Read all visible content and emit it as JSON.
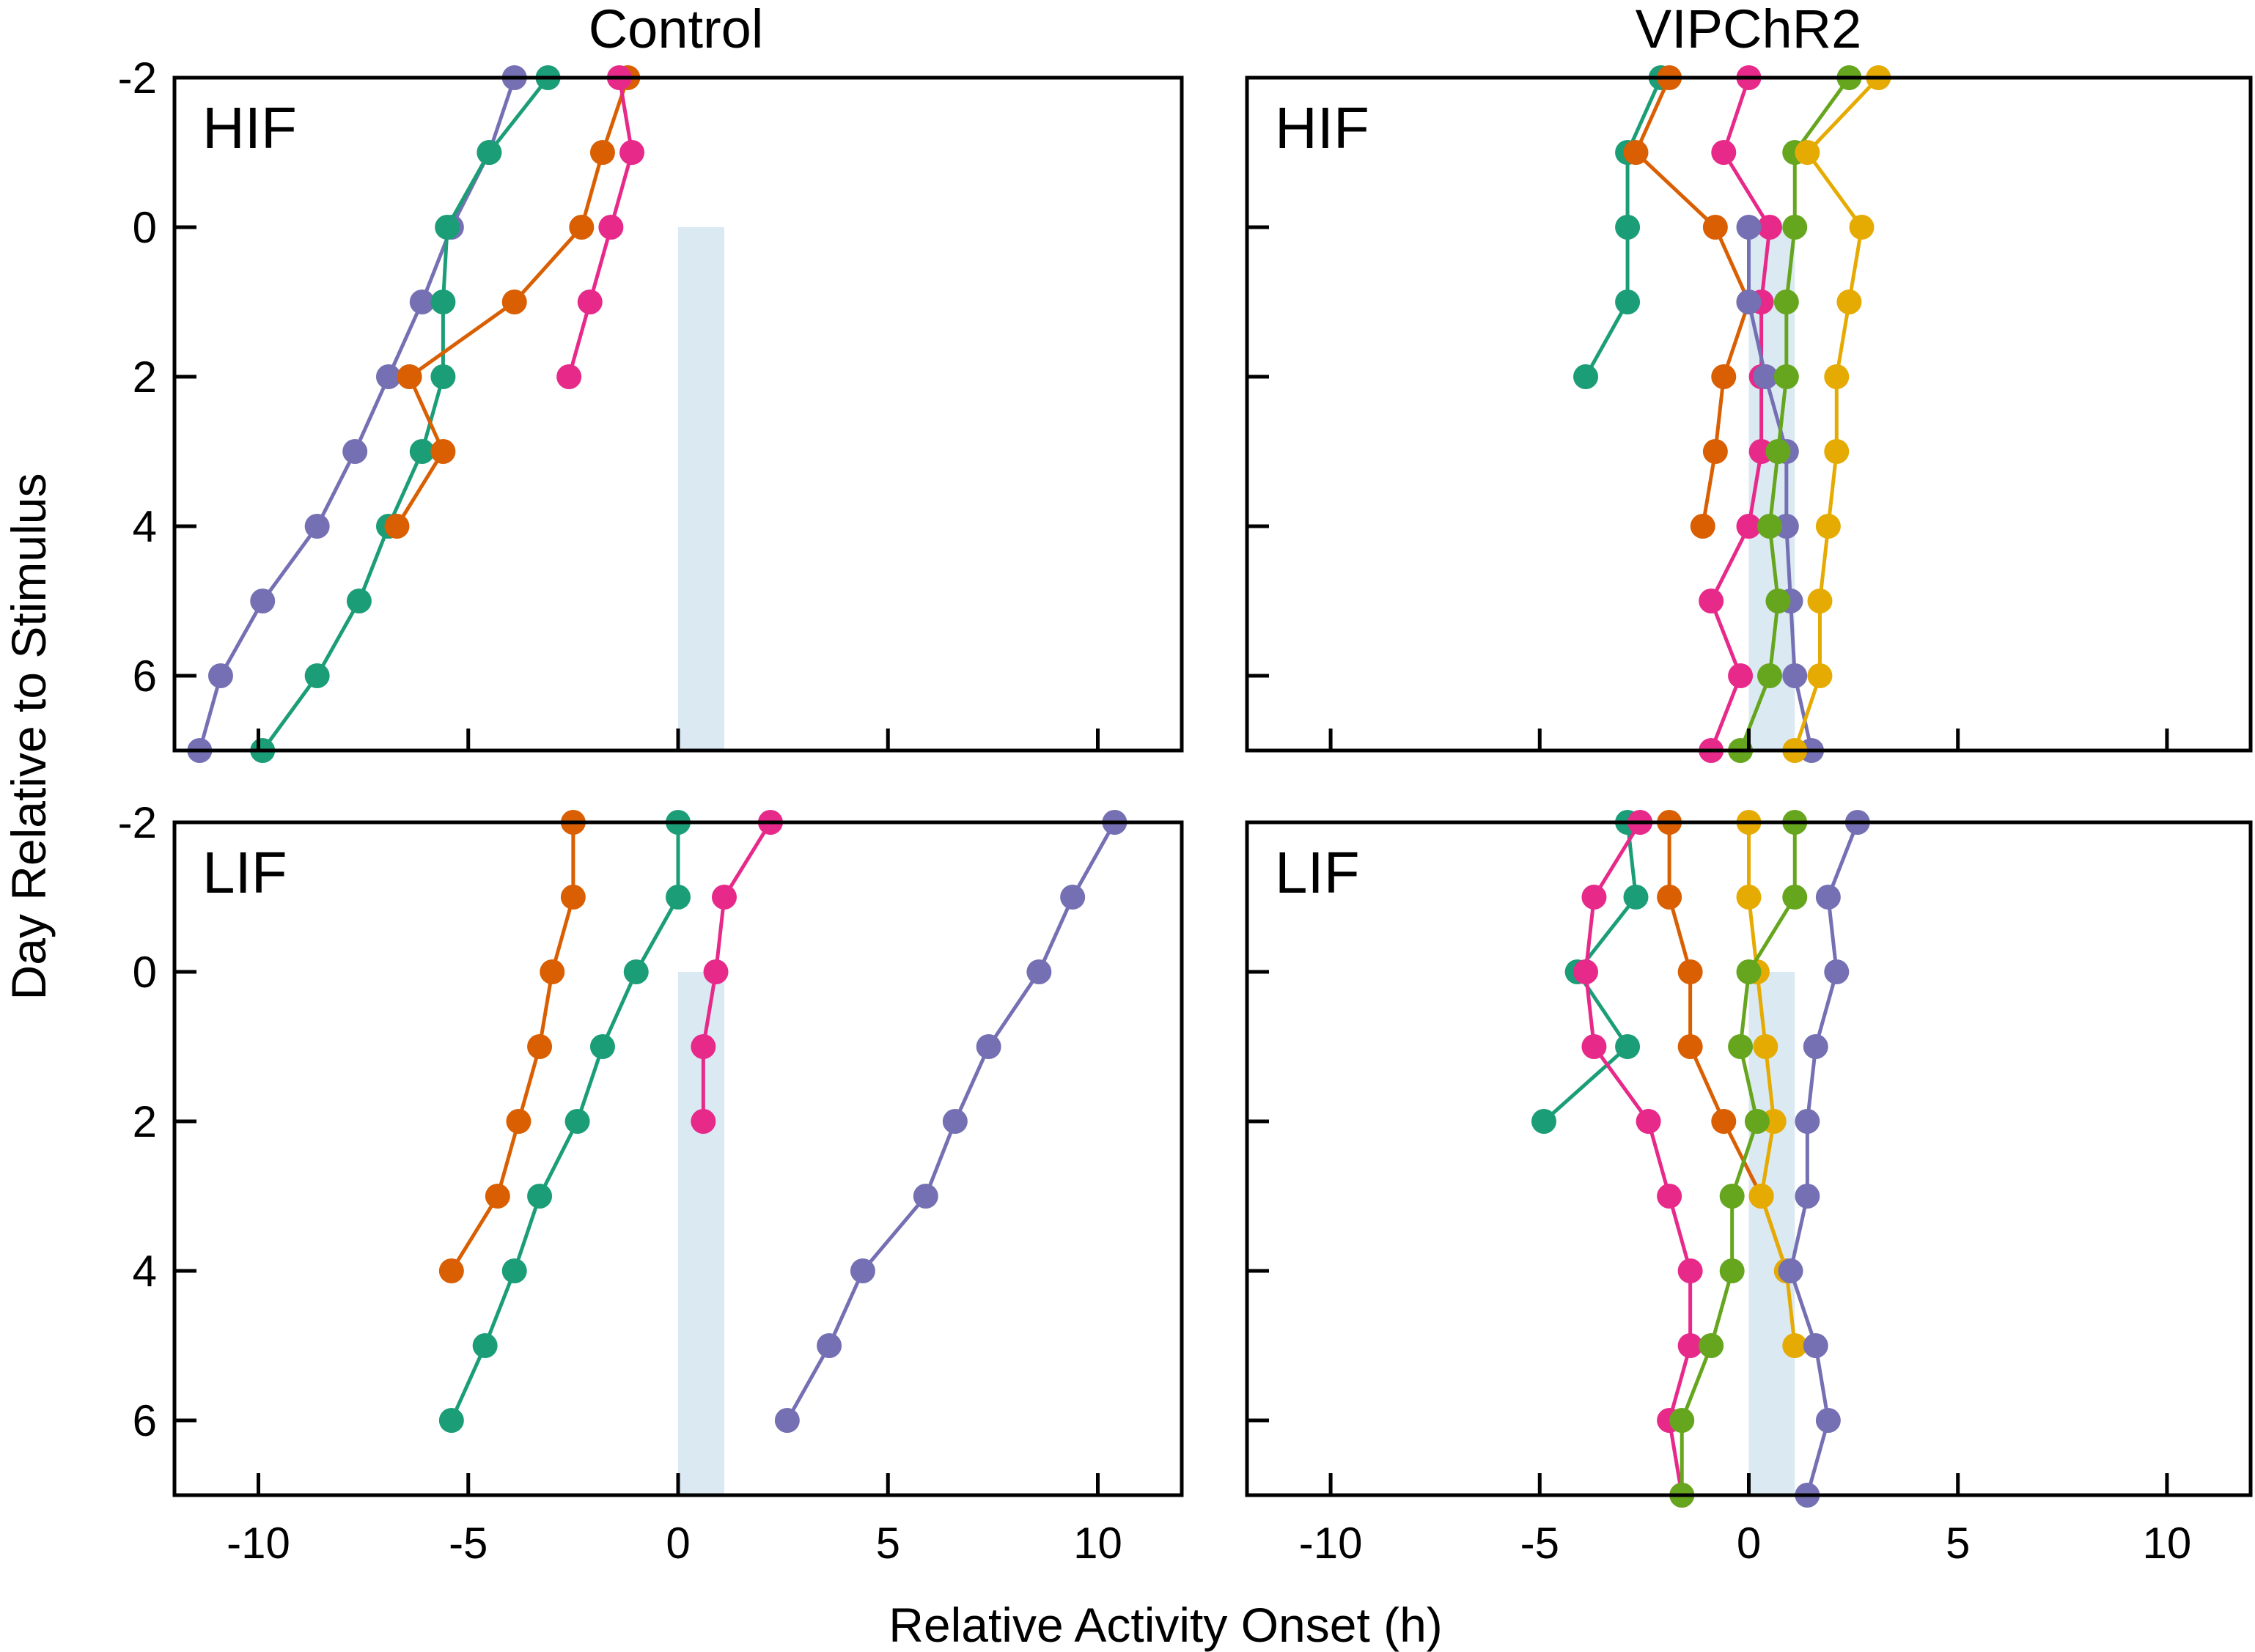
{
  "columns": [
    "Control",
    "VIPChR2"
  ],
  "xlabel": "Relative Activity Onset (h)",
  "ylabel": "Day Relative to Stimulus",
  "xticks": [
    -10,
    -5,
    0,
    5,
    10
  ],
  "xtick_labels": [
    "-10",
    "-5",
    "0",
    "5",
    "10"
  ],
  "yticks": [
    -2,
    0,
    2,
    4,
    6
  ],
  "ytick_labels": [
    "-2",
    "0",
    "2",
    "4",
    "6"
  ],
  "colors": {
    "green": "#1b9e77",
    "orange": "#d95f02",
    "purple": "#7570b3",
    "pink": "#e7298a",
    "lime": "#66a61e",
    "gold": "#e6ab02",
    "stimulus_band": "#dbe9f3"
  },
  "chart_data": [
    {
      "type": "line",
      "column": "Control",
      "label": "HIF",
      "xlim": [
        -12,
        12
      ],
      "ylim": [
        -2,
        7
      ],
      "stimulus": [
        0,
        1.1
      ],
      "series": [
        {
          "color": "purple",
          "points": [
            [
              -3.9,
              -2
            ],
            [
              -4.5,
              -1
            ],
            [
              -5.4,
              0
            ],
            [
              -6.1,
              1
            ],
            [
              -6.9,
              2
            ],
            [
              -7.7,
              3
            ],
            [
              -8.6,
              4
            ],
            [
              -9.9,
              5
            ],
            [
              -10.9,
              6
            ],
            [
              -11.4,
              7
            ]
          ]
        },
        {
          "color": "green",
          "points": [
            [
              -3.1,
              -2
            ],
            [
              -4.5,
              -1
            ],
            [
              -5.5,
              0
            ],
            [
              -5.6,
              1
            ],
            [
              -5.6,
              2
            ],
            [
              -6.1,
              3
            ],
            [
              -6.9,
              4
            ],
            [
              -7.6,
              5
            ],
            [
              -8.6,
              6
            ],
            [
              -9.9,
              7
            ]
          ]
        },
        {
          "color": "orange",
          "points": [
            [
              -1.2,
              -2
            ],
            [
              -1.8,
              -1
            ],
            [
              -2.3,
              0
            ],
            [
              -3.9,
              1
            ],
            [
              -6.4,
              2
            ],
            [
              -5.6,
              3
            ],
            [
              -6.7,
              4
            ]
          ]
        },
        {
          "color": "pink",
          "points": [
            [
              -1.4,
              -2
            ],
            [
              -1.1,
              -1
            ],
            [
              -1.6,
              0
            ],
            [
              -2.1,
              1
            ],
            [
              -2.6,
              2
            ]
          ]
        }
      ]
    },
    {
      "type": "line",
      "column": "VIPChR2",
      "label": "HIF",
      "xlim": [
        -12,
        12
      ],
      "ylim": [
        -2,
        7
      ],
      "stimulus": [
        0,
        1.1
      ],
      "series": [
        {
          "color": "green",
          "points": [
            [
              -2.1,
              -2
            ],
            [
              -2.9,
              -1
            ],
            [
              -2.9,
              0
            ],
            [
              -2.9,
              1
            ],
            [
              -3.9,
              2
            ]
          ]
        },
        {
          "color": "orange",
          "points": [
            [
              -1.9,
              -2
            ],
            [
              -2.7,
              -1
            ],
            [
              -0.8,
              0
            ],
            [
              0,
              1
            ],
            [
              -0.6,
              2
            ],
            [
              -0.8,
              3
            ],
            [
              -1.1,
              4
            ]
          ]
        },
        {
          "color": "pink",
          "points": [
            [
              0,
              -2
            ],
            [
              -0.6,
              -1
            ],
            [
              0.5,
              0
            ],
            [
              0.3,
              1
            ],
            [
              0.3,
              2
            ],
            [
              0.3,
              3
            ],
            [
              0,
              4
            ],
            [
              -0.9,
              5
            ],
            [
              -0.2,
              6
            ],
            [
              -0.9,
              7
            ]
          ]
        },
        {
          "color": "purple",
          "points": [
            [
              0,
              0
            ],
            [
              0,
              1
            ],
            [
              0.4,
              2
            ],
            [
              0.9,
              3
            ],
            [
              0.9,
              4
            ],
            [
              1,
              5
            ],
            [
              1.1,
              6
            ],
            [
              1.5,
              7
            ]
          ]
        },
        {
          "color": "lime",
          "points": [
            [
              2.4,
              -2
            ],
            [
              1.1,
              -1
            ],
            [
              1.1,
              0
            ],
            [
              0.9,
              1
            ],
            [
              0.9,
              2
            ],
            [
              0.7,
              3
            ],
            [
              0.5,
              4
            ],
            [
              0.7,
              5
            ],
            [
              0.5,
              6
            ],
            [
              -0.2,
              7
            ]
          ]
        },
        {
          "color": "gold",
          "points": [
            [
              3.1,
              -2
            ],
            [
              1.4,
              -1
            ],
            [
              2.7,
              0
            ],
            [
              2.4,
              1
            ],
            [
              2.1,
              2
            ],
            [
              2.1,
              3
            ],
            [
              1.9,
              4
            ],
            [
              1.7,
              5
            ],
            [
              1.7,
              6
            ],
            [
              1.1,
              7
            ]
          ]
        }
      ]
    },
    {
      "type": "line",
      "column": "Control",
      "label": "LIF",
      "xlim": [
        -12,
        12
      ],
      "ylim": [
        -2,
        7
      ],
      "stimulus": [
        0,
        1.1
      ],
      "series": [
        {
          "color": "orange",
          "points": [
            [
              -2.5,
              -2
            ],
            [
              -2.5,
              -1
            ],
            [
              -3,
              0
            ],
            [
              -3.3,
              1
            ],
            [
              -3.8,
              2
            ],
            [
              -4.3,
              3
            ],
            [
              -5.4,
              4
            ]
          ]
        },
        {
          "color": "green",
          "points": [
            [
              0,
              -2
            ],
            [
              0,
              -1
            ],
            [
              -1,
              0
            ],
            [
              -1.8,
              1
            ],
            [
              -2.4,
              2
            ],
            [
              -3.3,
              3
            ],
            [
              -3.9,
              4
            ],
            [
              -4.6,
              5
            ],
            [
              -5.4,
              6
            ]
          ]
        },
        {
          "color": "pink",
          "points": [
            [
              2.2,
              -2
            ],
            [
              1.1,
              -1
            ],
            [
              0.9,
              0
            ],
            [
              0.6,
              1
            ],
            [
              0.6,
              2
            ]
          ]
        },
        {
          "color": "purple",
          "points": [
            [
              10.4,
              -2
            ],
            [
              9.4,
              -1
            ],
            [
              8.6,
              0
            ],
            [
              7.4,
              1
            ],
            [
              6.6,
              2
            ],
            [
              5.9,
              3
            ],
            [
              4.4,
              4
            ],
            [
              3.6,
              5
            ],
            [
              2.6,
              6
            ]
          ]
        }
      ]
    },
    {
      "type": "line",
      "column": "VIPChR2",
      "label": "LIF",
      "xlim": [
        -12,
        12
      ],
      "ylim": [
        -2,
        7
      ],
      "stimulus": [
        0,
        1.1
      ],
      "series": [
        {
          "color": "green",
          "points": [
            [
              -2.9,
              -2
            ],
            [
              -2.7,
              -1
            ],
            [
              -4.1,
              0
            ],
            [
              -2.9,
              1
            ],
            [
              -4.9,
              2
            ]
          ]
        },
        {
          "color": "pink",
          "points": [
            [
              -2.6,
              -2
            ],
            [
              -3.7,
              -1
            ],
            [
              -3.9,
              0
            ],
            [
              -3.7,
              1
            ],
            [
              -2.4,
              2
            ],
            [
              -1.9,
              3
            ],
            [
              -1.4,
              4
            ],
            [
              -1.4,
              5
            ],
            [
              -1.9,
              6
            ],
            [
              -1.6,
              7
            ]
          ]
        },
        {
          "color": "orange",
          "points": [
            [
              -1.9,
              -2
            ],
            [
              -1.9,
              -1
            ],
            [
              -1.4,
              0
            ],
            [
              -1.4,
              1
            ],
            [
              -0.6,
              2
            ],
            [
              0.3,
              3
            ],
            [
              0.9,
              4
            ]
          ]
        },
        {
          "color": "gold",
          "points": [
            [
              0,
              -2
            ],
            [
              0,
              -1
            ],
            [
              0.2,
              0
            ],
            [
              0.4,
              1
            ],
            [
              0.6,
              2
            ],
            [
              0.3,
              3
            ],
            [
              0.9,
              4
            ],
            [
              1.1,
              5
            ]
          ]
        },
        {
          "color": "lime",
          "points": [
            [
              1.1,
              -2
            ],
            [
              1.1,
              -1
            ],
            [
              0,
              0
            ],
            [
              -0.2,
              1
            ],
            [
              0.2,
              2
            ],
            [
              -0.4,
              3
            ],
            [
              -0.4,
              4
            ],
            [
              -0.9,
              5
            ],
            [
              -1.6,
              6
            ],
            [
              -1.6,
              7
            ]
          ]
        },
        {
          "color": "purple",
          "points": [
            [
              2.6,
              -2
            ],
            [
              1.9,
              -1
            ],
            [
              2.1,
              0
            ],
            [
              1.6,
              1
            ],
            [
              1.4,
              2
            ],
            [
              1.4,
              3
            ],
            [
              1,
              4
            ],
            [
              1.6,
              5
            ],
            [
              1.9,
              6
            ],
            [
              1.4,
              7
            ]
          ]
        }
      ]
    }
  ]
}
